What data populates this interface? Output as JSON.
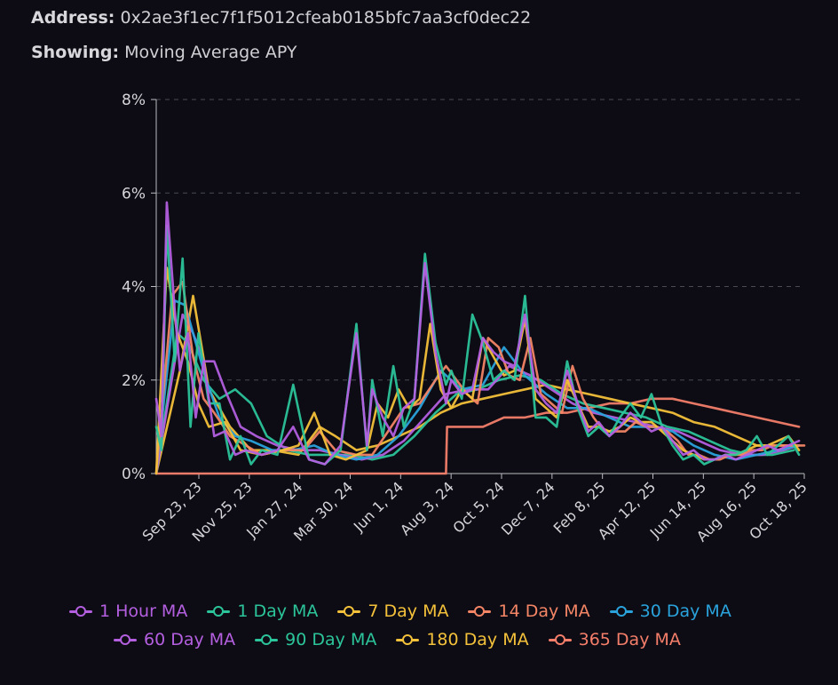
{
  "header": {
    "address_label": "Address:",
    "address_value": "0x2ae3f1ec7f1f5012cfeab0185bfc7aa3cf0dec22",
    "showing_label": "Showing:",
    "showing_value": "Moving Average APY"
  },
  "chart_data": {
    "type": "line",
    "title": "",
    "xlabel": "",
    "ylabel": "",
    "ylim": [
      0,
      8
    ],
    "y_ticks": [
      "0%",
      "2%",
      "4%",
      "6%",
      "8%"
    ],
    "x_ticks": [
      "Sep 23, 23",
      "Nov 25, 23",
      "Jan 27, 24",
      "Mar 30, 24",
      "Jun 1, 24",
      "Aug 3, 24",
      "Oct 5, 24",
      "Dec 7, 24",
      "Feb 8, 25",
      "Apr 12, 25",
      "Jun 14, 25",
      "Aug 16, 25",
      "Oct 18, 25"
    ],
    "grid": "horizontal-dashed",
    "legend_position": "bottom",
    "x_domain": [
      0,
      12.3
    ],
    "series": [
      {
        "name": "1 Hour MA",
        "color": "#b45fe0",
        "x": [
          0.0,
          0.1,
          0.2,
          0.35,
          0.45,
          0.6,
          0.75,
          0.9,
          1.1,
          1.3,
          1.5,
          1.7,
          2.0,
          2.3,
          2.6,
          2.9,
          3.2,
          3.5,
          3.8,
          4.0,
          4.1,
          4.3,
          4.5,
          4.7,
          4.9,
          5.1,
          5.3,
          5.5,
          5.6,
          5.8,
          6.0,
          6.2,
          6.4,
          6.6,
          6.8,
          7.0,
          7.2,
          7.4,
          7.6,
          7.8,
          8.0,
          8.2,
          8.4,
          8.6,
          8.8,
          9.0,
          9.2,
          9.4,
          9.6,
          9.8,
          10.0,
          10.2,
          10.4,
          10.6,
          10.8,
          11.0,
          11.2,
          11.4,
          11.6,
          11.8,
          12.0,
          12.2
        ],
        "y": [
          1.6,
          0.8,
          5.8,
          3.5,
          2.2,
          3.0,
          1.2,
          2.4,
          0.8,
          0.9,
          0.4,
          0.5,
          0.4,
          0.5,
          1.0,
          0.3,
          0.2,
          0.6,
          3.0,
          0.6,
          1.8,
          1.2,
          0.8,
          1.4,
          1.6,
          4.5,
          2.6,
          1.5,
          2.0,
          1.7,
          1.8,
          2.9,
          2.6,
          2.4,
          2.3,
          3.4,
          1.8,
          1.5,
          1.3,
          2.2,
          1.5,
          0.9,
          1.1,
          0.8,
          1.0,
          1.3,
          1.1,
          0.9,
          1.0,
          0.7,
          0.4,
          0.5,
          0.3,
          0.3,
          0.4,
          0.3,
          0.4,
          0.5,
          0.6,
          0.5,
          0.6,
          0.7
        ]
      },
      {
        "name": "1 Day MA",
        "color": "#2cc49a",
        "x": [
          0.0,
          0.1,
          0.2,
          0.35,
          0.5,
          0.65,
          0.8,
          1.0,
          1.2,
          1.4,
          1.6,
          1.8,
          2.0,
          2.3,
          2.6,
          2.9,
          3.2,
          3.5,
          3.8,
          4.0,
          4.1,
          4.3,
          4.5,
          4.7,
          4.9,
          5.1,
          5.3,
          5.5,
          5.6,
          5.8,
          6.0,
          6.2,
          6.4,
          6.6,
          6.8,
          7.0,
          7.2,
          7.4,
          7.6,
          7.8,
          8.0,
          8.2,
          8.4,
          8.6,
          8.8,
          9.0,
          9.2,
          9.4,
          9.6,
          9.8,
          10.0,
          10.2,
          10.4,
          10.6,
          10.8,
          11.0,
          11.2,
          11.4,
          11.6,
          11.8,
          12.0,
          12.2
        ],
        "y": [
          1.0,
          0.5,
          5.3,
          2.4,
          4.6,
          1.0,
          3.0,
          1.5,
          1.5,
          0.3,
          0.8,
          0.2,
          0.5,
          0.4,
          1.9,
          0.3,
          0.2,
          0.5,
          3.2,
          0.5,
          2.0,
          0.8,
          2.3,
          1.0,
          1.6,
          4.7,
          2.8,
          1.9,
          2.2,
          1.6,
          3.4,
          2.8,
          2.0,
          2.2,
          2.0,
          3.8,
          1.2,
          1.2,
          1.0,
          2.4,
          1.4,
          0.8,
          1.0,
          0.8,
          1.2,
          1.5,
          1.2,
          1.7,
          1.0,
          0.6,
          0.3,
          0.4,
          0.2,
          0.3,
          0.4,
          0.4,
          0.5,
          0.8,
          0.4,
          0.6,
          0.8,
          0.4
        ]
      },
      {
        "name": "7 Day MA",
        "color": "#f4c13a",
        "x": [
          0.0,
          0.2,
          0.4,
          0.6,
          0.8,
          1.0,
          1.3,
          1.6,
          2.0,
          2.4,
          2.7,
          3.0,
          3.3,
          3.6,
          4.0,
          4.2,
          4.4,
          4.6,
          4.8,
          5.0,
          5.2,
          5.4,
          5.6,
          5.8,
          6.0,
          6.2,
          6.4,
          6.6,
          6.8,
          7.0,
          7.2,
          7.4,
          7.6,
          7.8,
          8.0,
          8.2,
          8.4,
          8.6,
          8.8,
          9.0,
          9.2,
          9.4,
          9.6,
          9.8,
          10.0,
          10.2,
          10.4,
          10.6,
          10.8,
          11.0,
          11.2,
          11.4,
          11.6,
          11.8,
          12.0,
          12.2
        ],
        "y": [
          0.0,
          4.4,
          3.0,
          2.4,
          1.5,
          1.0,
          1.1,
          0.5,
          0.4,
          0.5,
          0.6,
          1.3,
          0.4,
          0.3,
          0.5,
          1.5,
          1.2,
          1.8,
          1.4,
          1.6,
          3.2,
          1.8,
          1.4,
          1.8,
          1.6,
          2.9,
          2.5,
          2.1,
          2.2,
          3.3,
          1.6,
          1.4,
          1.2,
          2.0,
          1.5,
          1.0,
          1.0,
          0.9,
          1.0,
          1.2,
          1.1,
          1.1,
          0.9,
          0.7,
          0.5,
          0.4,
          0.3,
          0.3,
          0.4,
          0.4,
          0.5,
          0.6,
          0.6,
          0.7,
          0.8,
          0.5
        ]
      },
      {
        "name": "14 Day MA",
        "color": "#f48565",
        "x": [
          0.0,
          0.3,
          0.5,
          0.7,
          0.9,
          1.1,
          1.4,
          1.7,
          2.0,
          2.4,
          2.8,
          3.1,
          3.4,
          3.8,
          4.1,
          4.4,
          4.7,
          5.0,
          5.3,
          5.5,
          5.7,
          5.9,
          6.1,
          6.3,
          6.5,
          6.7,
          6.9,
          7.1,
          7.3,
          7.5,
          7.7,
          7.9,
          8.1,
          8.3,
          8.5,
          8.7,
          8.9,
          9.1,
          9.3,
          9.5,
          9.7,
          9.9,
          10.1,
          10.3,
          10.5,
          10.7,
          10.9,
          11.1,
          11.3,
          11.5,
          11.7,
          11.9,
          12.1,
          12.3
        ],
        "y": [
          0.0,
          3.8,
          4.1,
          2.5,
          1.6,
          1.3,
          0.8,
          0.6,
          0.4,
          0.5,
          0.5,
          0.9,
          0.5,
          0.4,
          0.4,
          0.9,
          1.4,
          1.5,
          2.0,
          2.3,
          2.0,
          1.7,
          1.5,
          2.9,
          2.7,
          2.1,
          2.0,
          2.9,
          1.7,
          1.5,
          1.3,
          2.3,
          1.6,
          1.2,
          0.9,
          0.9,
          0.9,
          1.1,
          1.0,
          1.0,
          0.9,
          0.7,
          0.4,
          0.4,
          0.3,
          0.3,
          0.4,
          0.4,
          0.5,
          0.5,
          0.6,
          0.6,
          0.6,
          0.6
        ]
      },
      {
        "name": "30 Day MA",
        "color": "#2aa3dc",
        "x": [
          0.0,
          0.35,
          0.55,
          0.75,
          0.95,
          1.2,
          1.5,
          1.8,
          2.2,
          2.6,
          3.0,
          3.4,
          3.8,
          4.2,
          4.6,
          5.0,
          5.4,
          5.8,
          6.2,
          6.6,
          7.0,
          7.4,
          7.8,
          8.2,
          8.6,
          9.0,
          9.4,
          9.8,
          10.2,
          10.6,
          11.0,
          11.4,
          11.8,
          12.2
        ],
        "y": [
          0.0,
          3.7,
          3.6,
          2.8,
          2.0,
          1.2,
          0.8,
          0.7,
          0.5,
          0.5,
          0.6,
          0.4,
          0.3,
          0.4,
          0.8,
          1.4,
          2.2,
          1.8,
          1.9,
          2.7,
          2.1,
          1.7,
          1.4,
          1.4,
          1.2,
          1.0,
          1.0,
          0.9,
          0.6,
          0.4,
          0.3,
          0.4,
          0.5,
          0.6
        ]
      },
      {
        "name": "60 Day MA",
        "color": "#b45fe0",
        "x": [
          0.0,
          0.5,
          0.7,
          0.9,
          1.1,
          1.3,
          1.6,
          1.9,
          2.3,
          2.7,
          3.1,
          3.5,
          3.9,
          4.3,
          4.7,
          5.1,
          5.5,
          5.9,
          6.3,
          6.7,
          7.1,
          7.5,
          7.9,
          8.3,
          8.7,
          9.1,
          9.5,
          9.9,
          10.3,
          10.7,
          11.1,
          11.5,
          11.9,
          12.2
        ],
        "y": [
          0.0,
          3.4,
          3.0,
          2.4,
          2.4,
          1.8,
          1.0,
          0.8,
          0.6,
          0.5,
          0.5,
          0.4,
          0.3,
          0.4,
          0.7,
          1.2,
          1.7,
          1.8,
          1.8,
          2.3,
          2.1,
          1.8,
          1.5,
          1.3,
          1.2,
          1.1,
          1.0,
          0.9,
          0.7,
          0.5,
          0.4,
          0.4,
          0.5,
          0.6
        ]
      },
      {
        "name": "90 Day MA",
        "color": "#2cc49a",
        "x": [
          0.0,
          0.4,
          0.6,
          0.9,
          1.2,
          1.5,
          1.8,
          2.1,
          2.5,
          2.9,
          3.3,
          3.7,
          4.1,
          4.5,
          4.9,
          5.3,
          5.7,
          6.1,
          6.5,
          6.9,
          7.3,
          7.7,
          8.1,
          8.5,
          8.9,
          9.3,
          9.7,
          10.1,
          10.5,
          10.9,
          11.3,
          11.7,
          12.1
        ],
        "y": [
          0.0,
          3.0,
          2.8,
          2.0,
          1.6,
          1.8,
          1.5,
          0.8,
          0.5,
          0.4,
          0.4,
          0.4,
          0.3,
          0.4,
          0.8,
          1.3,
          1.7,
          1.8,
          2.0,
          2.1,
          2.0,
          1.7,
          1.5,
          1.4,
          1.3,
          1.2,
          1.0,
          0.9,
          0.7,
          0.5,
          0.4,
          0.4,
          0.5
        ]
      },
      {
        "name": "180 Day MA",
        "color": "#f4c13a",
        "x": [
          0.0,
          0.45,
          0.7,
          1.0,
          1.4,
          1.8,
          2.2,
          2.7,
          3.1,
          3.4,
          3.8,
          4.2,
          4.6,
          5.0,
          5.4,
          5.8,
          6.2,
          6.6,
          7.0,
          7.4,
          7.8,
          8.2,
          8.6,
          9.0,
          9.4,
          9.8,
          10.2,
          10.6,
          11.0,
          11.4,
          11.8,
          12.2
        ],
        "y": [
          0.0,
          2.2,
          3.8,
          1.8,
          1.0,
          0.5,
          0.5,
          0.4,
          1.0,
          0.8,
          0.5,
          0.6,
          0.8,
          1.0,
          1.3,
          1.5,
          1.6,
          1.7,
          1.8,
          1.9,
          1.8,
          1.7,
          1.6,
          1.5,
          1.4,
          1.3,
          1.1,
          1.0,
          0.8,
          0.6,
          0.6,
          0.6
        ]
      },
      {
        "name": "365 Day MA",
        "color": "#f47e6a",
        "x": [
          0.0,
          0.4,
          0.41,
          1.0,
          3.0,
          5.5,
          5.52,
          5.8,
          6.2,
          6.6,
          7.0,
          7.4,
          7.8,
          8.2,
          8.6,
          9.0,
          9.4,
          9.8,
          10.2,
          10.6,
          11.0,
          11.4,
          11.8,
          12.2
        ],
        "y": [
          0.0,
          0.0,
          0.0,
          0.0,
          0.0,
          0.0,
          1.0,
          1.0,
          1.0,
          1.2,
          1.2,
          1.3,
          1.3,
          1.4,
          1.5,
          1.5,
          1.6,
          1.6,
          1.5,
          1.4,
          1.3,
          1.2,
          1.1,
          1.0
        ]
      }
    ]
  }
}
